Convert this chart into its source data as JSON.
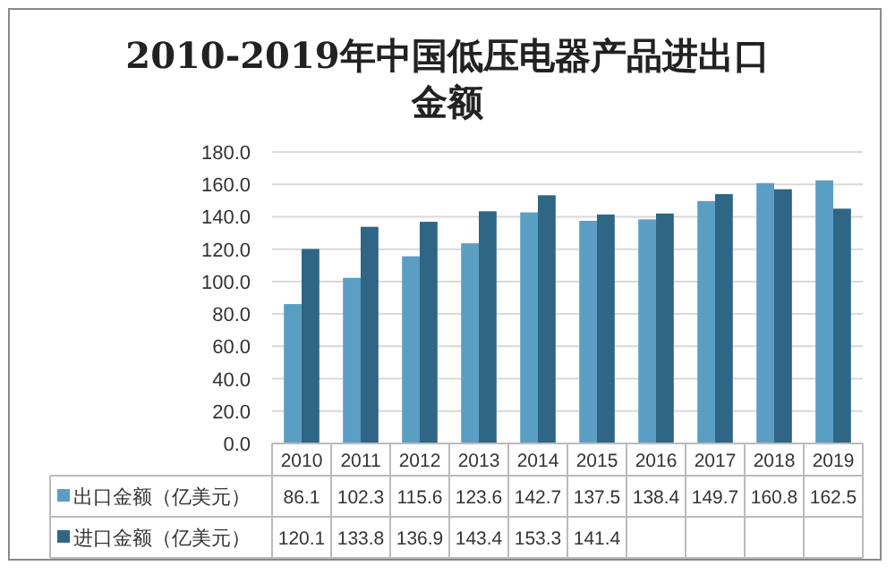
{
  "chart_data": {
    "type": "bar",
    "title": "2010-2019年中国低压电器产品进出口金额",
    "categories": [
      "2010",
      "2011",
      "2012",
      "2013",
      "2014",
      "2015",
      "2016",
      "2017",
      "2018",
      "2019"
    ],
    "series": [
      {
        "name": "出口金额（亿美元）",
        "color": "#5b9ec4",
        "values": [
          86.1,
          102.3,
          115.6,
          123.6,
          142.7,
          137.5,
          138.4,
          149.7,
          160.8,
          162.5
        ],
        "value_labels": [
          "86.1",
          "102.3",
          "115.6",
          "123.6",
          "142.7",
          "137.5",
          "138.4",
          "149.7",
          "160.8",
          "162.5"
        ]
      },
      {
        "name": "进口金额（亿美元）",
        "color": "#2f6585",
        "values": [
          120.1,
          133.8,
          136.9,
          143.4,
          153.3,
          141.4,
          142,
          154,
          157,
          145
        ],
        "value_labels": [
          "120.1",
          "133.8",
          "136.9",
          "143.4",
          "153.3",
          "141.4",
          null,
          null,
          null,
          null
        ]
      }
    ],
    "ylim": [
      0,
      180
    ],
    "yticks": [
      {
        "value": 0,
        "label": "0.0"
      },
      {
        "value": 20,
        "label": "20.0"
      },
      {
        "value": 40,
        "label": "40.0"
      },
      {
        "value": 60,
        "label": "60.0"
      },
      {
        "value": 80,
        "label": "80.0"
      },
      {
        "value": 100,
        "label": "100.0"
      },
      {
        "value": 120,
        "label": "120.0"
      },
      {
        "value": 140,
        "label": "140.0"
      },
      {
        "value": 160,
        "label": "160.0"
      },
      {
        "value": 180,
        "label": "180.0"
      }
    ],
    "grid": "y",
    "legend": "bottom"
  }
}
